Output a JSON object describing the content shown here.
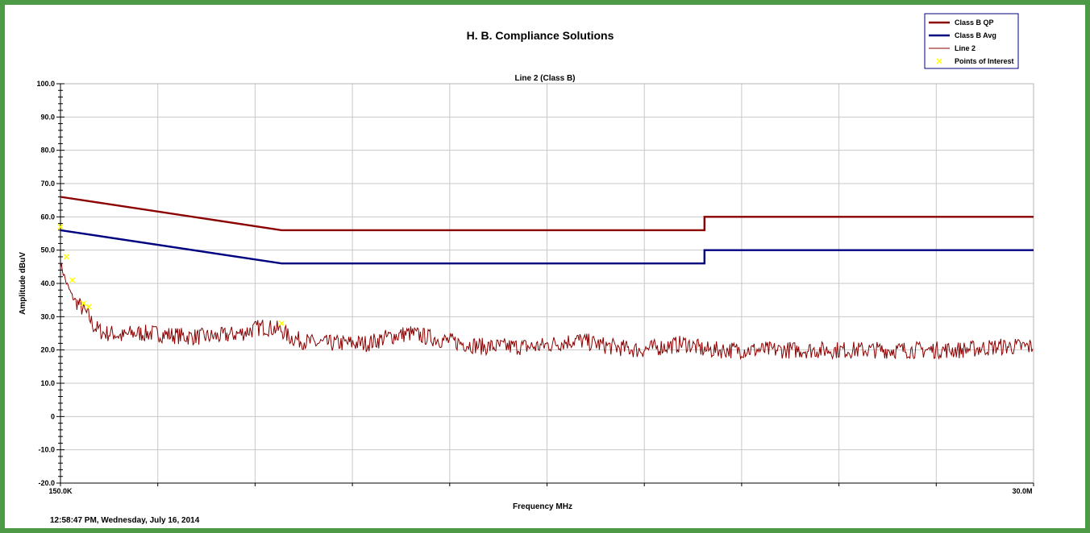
{
  "header": {
    "title": "H. B. Compliance Solutions"
  },
  "footer": {
    "timestamp": "12:58:47 PM, Wednesday, July 16, 2014"
  },
  "colors": {
    "frame": "#4c9a45",
    "qp_limit": "#8b0000",
    "avg_limit": "#000080",
    "trace": "#8b0000",
    "points_of_interest": "#ffff00",
    "grid": "#c8c8c8",
    "legend_border": "#000080"
  },
  "chart_data": {
    "type": "line",
    "title": "Line 2 (Class B)",
    "xlabel": "Frequency MHz",
    "ylabel": "Amplitude dBuV",
    "x_scale": "log",
    "xlim": [
      0.15,
      30
    ],
    "ylim": [
      -20,
      100
    ],
    "x_tick_labels": [
      "150.0K",
      "30.0M"
    ],
    "y_ticks": [
      100,
      90,
      80,
      70,
      60,
      50,
      40,
      30,
      20,
      10,
      0,
      -10,
      -20
    ],
    "y_tick_labels": [
      "100.0",
      "90.0",
      "80.0",
      "70.0",
      "60.0",
      "50.0",
      "40.0",
      "30.0",
      "20.0",
      "10.0",
      "0",
      "-10.0",
      "-20.0"
    ],
    "grid": true,
    "legend_position": "top-right",
    "series": [
      {
        "name": "Class B QP",
        "kind": "limit",
        "x": [
          0.15,
          0.5,
          0.5,
          5,
          5,
          30
        ],
        "y": [
          66,
          56,
          56,
          56,
          60,
          60
        ]
      },
      {
        "name": "Class B Avg",
        "kind": "limit",
        "x": [
          0.15,
          0.5,
          0.5,
          5,
          5,
          30
        ],
        "y": [
          56,
          46,
          46,
          46,
          50,
          50
        ]
      },
      {
        "name": "Line 2",
        "kind": "trace",
        "x": [
          0.15,
          0.155,
          0.16,
          0.165,
          0.17,
          0.175,
          0.18,
          0.19,
          0.2,
          0.21,
          0.22,
          0.25,
          0.3,
          0.35,
          0.4,
          0.45,
          0.5,
          0.52,
          0.55,
          0.6,
          0.7,
          0.8,
          0.9,
          1.0,
          1.2,
          1.5,
          2.0,
          2.5,
          3.0,
          3.5,
          4.0,
          4.5,
          5.0,
          6.0,
          7.0,
          8.0,
          10.0,
          12.0,
          15.0,
          20.0,
          25.0,
          30.0
        ],
        "y": [
          46,
          40,
          36,
          34,
          32,
          30,
          27,
          25,
          25,
          24,
          25,
          25,
          24,
          24,
          25,
          27,
          26,
          24,
          23,
          22,
          22,
          22,
          24,
          25,
          23,
          21,
          21,
          23,
          21,
          20,
          21,
          22,
          20,
          20,
          20,
          20,
          20,
          20,
          20,
          20,
          21,
          21
        ]
      },
      {
        "name": "Points of Interest",
        "kind": "markers",
        "x": [
          0.15,
          0.155,
          0.16,
          0.17,
          0.175,
          0.5
        ],
        "y": [
          57,
          48,
          41,
          34,
          33,
          28
        ]
      }
    ]
  }
}
